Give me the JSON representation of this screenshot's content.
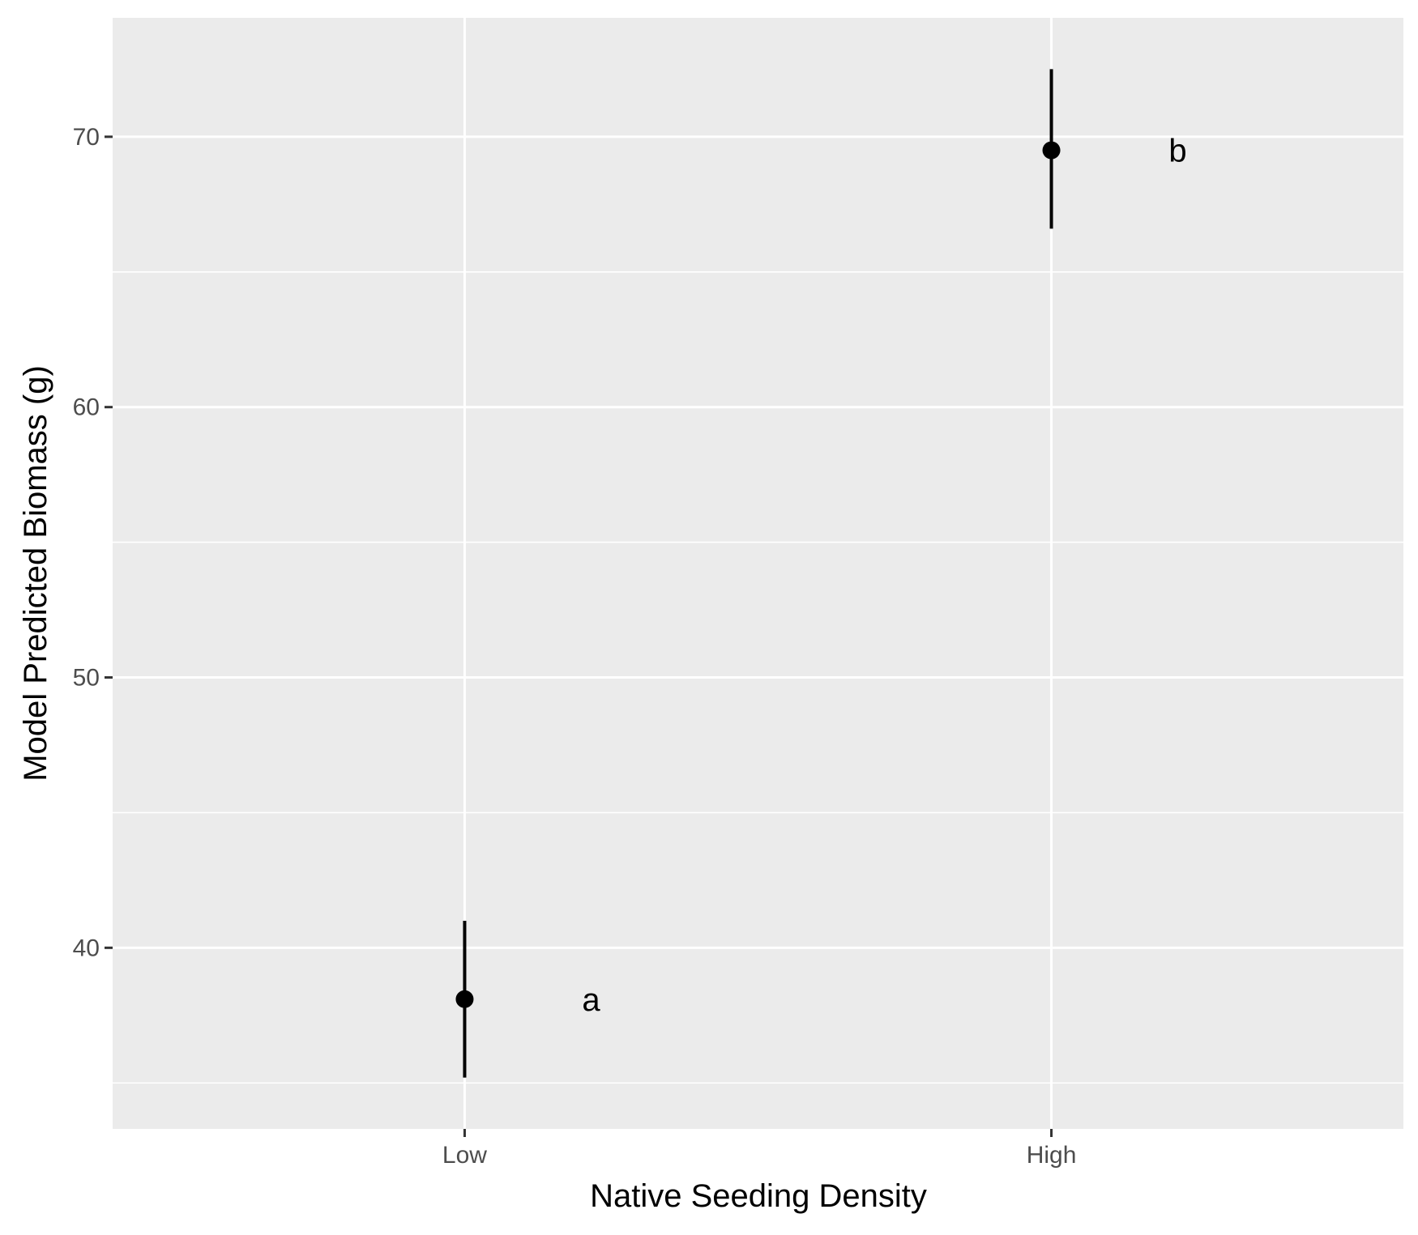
{
  "chart_data": {
    "type": "scatter",
    "title": "",
    "xlabel": "Native Seeding Density",
    "ylabel": "Model Predicted Biomass (g)",
    "categories": [
      "Low",
      "High"
    ],
    "points": [
      {
        "category": "Low",
        "y": 38.1,
        "ymin": 35.2,
        "ymax": 41.0,
        "label": "a"
      },
      {
        "category": "High",
        "y": 69.5,
        "ymin": 66.6,
        "ymax": 72.5,
        "label": "b"
      }
    ],
    "ylim": [
      33.3,
      74.4
    ],
    "yticks": [
      40,
      50,
      60,
      70
    ],
    "yticks_minor": [
      35,
      45,
      55,
      65
    ],
    "grid": true,
    "legend": "none"
  },
  "colors": {
    "panel_bg": "#ebebeb",
    "grid": "#ffffff",
    "point": "#000000",
    "tick": "#333333"
  }
}
